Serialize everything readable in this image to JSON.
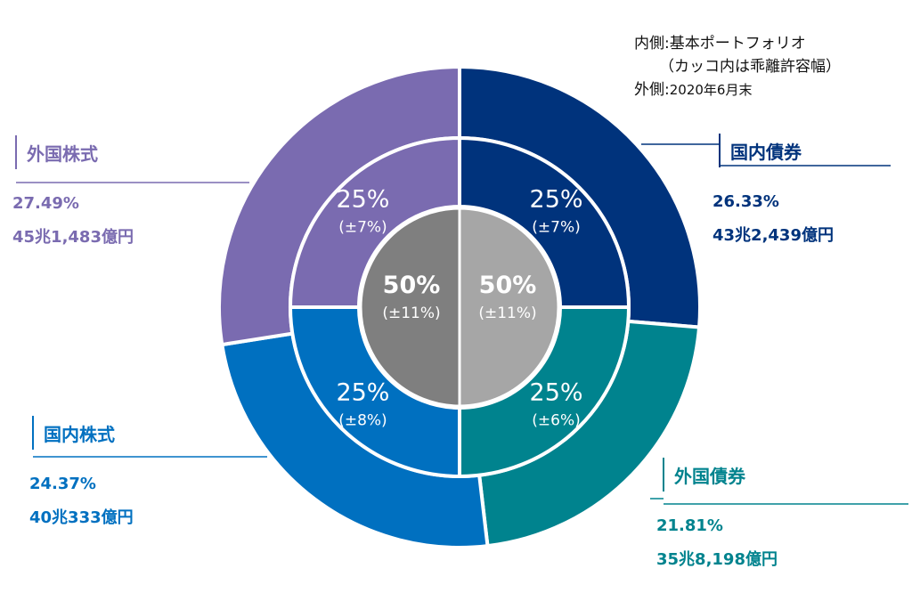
{
  "legend_note": {
    "inner_label": "内側:基本ポートフォリオ",
    "inner_sub": "（カッコ内は乖離許容幅）",
    "outer_prefix": "外側:",
    "outer_date": "2020年6月末"
  },
  "colors": {
    "domestic_bonds": "#00337c",
    "foreign_bonds": "#00838e",
    "domestic_stocks": "#0070c0",
    "foreign_stocks": "#7a6bb0",
    "core_bonds": "#a6a6a6",
    "core_stocks": "#7f7f7f"
  },
  "chart_data": {
    "type": "pie",
    "outer": [
      {
        "name": "国内債券",
        "percent": 26.33,
        "amount": "43兆2,439億円",
        "value_label": "26.33%"
      },
      {
        "name": "外国債券",
        "percent": 21.81,
        "amount": "35兆8,198億円",
        "value_label": "21.81%"
      },
      {
        "name": "国内株式",
        "percent": 24.37,
        "amount": "40兆333億円",
        "value_label": "24.37%"
      },
      {
        "name": "外国株式",
        "percent": 27.49,
        "amount": "45兆1,483億円",
        "value_label": "27.49%"
      }
    ],
    "middle": [
      {
        "percent": 25,
        "pct_label": "25%",
        "band_label": "(±7%)"
      },
      {
        "percent": 25,
        "pct_label": "25%",
        "band_label": "(±6%)"
      },
      {
        "percent": 25,
        "pct_label": "25%",
        "band_label": "(±8%)"
      },
      {
        "percent": 25,
        "pct_label": "25%",
        "band_label": "(±7%)"
      }
    ],
    "core": [
      {
        "percent": 50,
        "pct_label": "50%",
        "band_label": "(±11%)"
      },
      {
        "percent": 50,
        "pct_label": "50%",
        "band_label": "(±11%)"
      }
    ]
  }
}
